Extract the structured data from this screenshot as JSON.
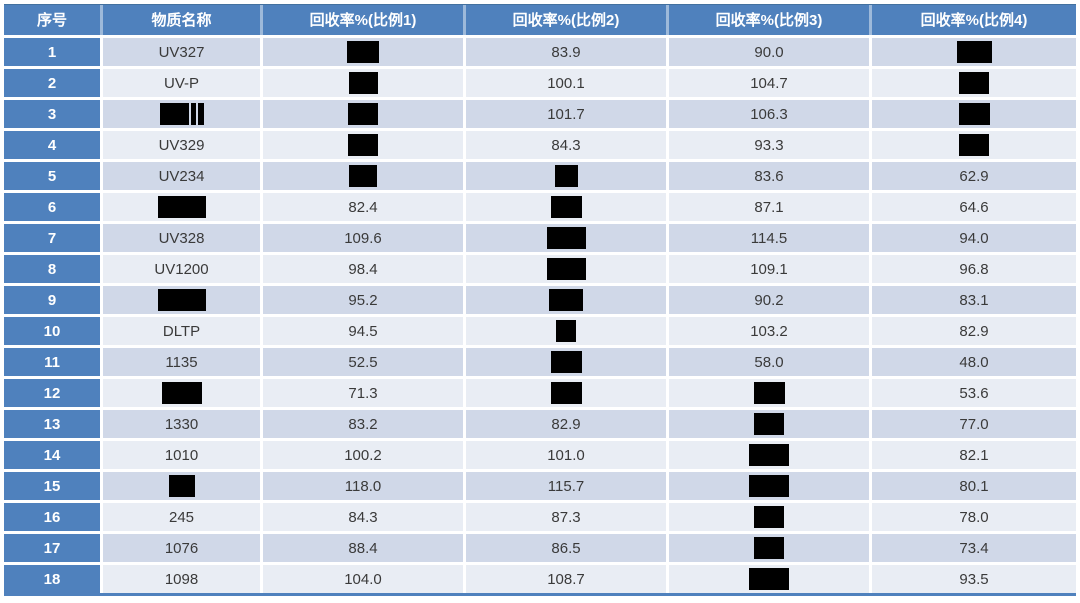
{
  "colors": {
    "accent": "#4f81bd",
    "band1": "#d0d8e8",
    "band2": "#e9edf4",
    "text": "#3a3a3a",
    "redaction": "#000000",
    "header_text": "#ffffff"
  },
  "table": {
    "headers": [
      "序号",
      "物质名称",
      "回收率%(比例1)",
      "回收率%(比例2)",
      "回收率%(比例3)",
      "回收率%(比例4)"
    ],
    "redaction_note": "cells given as objects {\"r\": width_px} are blacked-out/redacted values",
    "rows": [
      [
        "1",
        "UV327",
        {
          "r": 32
        },
        "83.9",
        "90.0",
        {
          "r": 35
        }
      ],
      [
        "2",
        "UV-P",
        {
          "r": 29
        },
        "100.1",
        "104.7",
        {
          "r": 30
        }
      ],
      [
        "3",
        {
          "r": 44,
          "segs": [
            29,
            5,
            6
          ]
        },
        {
          "r": 30
        },
        "101.7",
        "106.3",
        {
          "r": 31
        }
      ],
      [
        "4",
        "UV329",
        {
          "r": 30
        },
        "84.3",
        "93.3",
        {
          "r": 30
        }
      ],
      [
        "5",
        "UV234",
        {
          "r": 28
        },
        {
          "r": 23
        },
        "83.6",
        "62.9"
      ],
      [
        "6",
        {
          "r": 48
        },
        "82.4",
        {
          "r": 31
        },
        "87.1",
        "64.6"
      ],
      [
        "7",
        "UV328",
        "109.6",
        {
          "r": 39
        },
        "114.5",
        "94.0"
      ],
      [
        "8",
        "UV1200",
        "98.4",
        {
          "r": 39
        },
        "109.1",
        "96.8"
      ],
      [
        "9",
        {
          "r": 48
        },
        "95.2",
        {
          "r": 34
        },
        "90.2",
        "83.1"
      ],
      [
        "10",
        "DLTP",
        "94.5",
        {
          "r": 20
        },
        "103.2",
        "82.9"
      ],
      [
        "11",
        "1135",
        "52.5",
        {
          "r": 31
        },
        "58.0",
        "48.0"
      ],
      [
        "12",
        {
          "r": 40
        },
        "71.3",
        {
          "r": 31
        },
        {
          "r": 31
        },
        "53.6"
      ],
      [
        "13",
        "1330",
        "83.2",
        "82.9",
        {
          "r": 30
        },
        "77.0"
      ],
      [
        "14",
        "1010",
        "100.2",
        "101.0",
        {
          "r": 40
        },
        "82.1"
      ],
      [
        "15",
        {
          "r": 26
        },
        "118.0",
        "115.7",
        {
          "r": 40
        },
        "80.1"
      ],
      [
        "16",
        "245",
        "84.3",
        "87.3",
        {
          "r": 30
        },
        "78.0"
      ],
      [
        "17",
        "1076",
        "88.4",
        "86.5",
        {
          "r": 30
        },
        "73.4"
      ],
      [
        "18",
        "1098",
        "104.0",
        "108.7",
        {
          "r": 40
        },
        "93.5"
      ]
    ]
  }
}
